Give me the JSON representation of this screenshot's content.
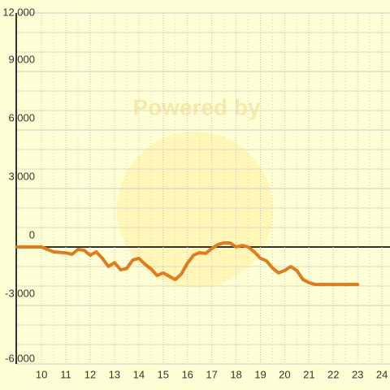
{
  "chart_data": {
    "type": "line",
    "watermark": "Powered by",
    "x": [
      9,
      10,
      10.5,
      11,
      11.25,
      11.5,
      11.75,
      12,
      12.25,
      12.5,
      12.75,
      13,
      13.25,
      13.5,
      13.75,
      14,
      14.25,
      14.5,
      14.75,
      15,
      15.25,
      15.5,
      15.75,
      16,
      16.25,
      16.5,
      16.75,
      17,
      17.25,
      17.5,
      17.75,
      18,
      18.25,
      18.5,
      18.75,
      19,
      19.25,
      19.5,
      19.75,
      20,
      20.25,
      20.5,
      20.75,
      21,
      21.25,
      21.5,
      23
    ],
    "series": [
      {
        "color": "#e07b20",
        "values": [
          0,
          0,
          -250,
          -300,
          -375,
          -125,
          -170,
          -420,
          -250,
          -580,
          -1000,
          -800,
          -1170,
          -1100,
          -670,
          -580,
          -880,
          -1120,
          -1460,
          -1330,
          -1500,
          -1670,
          -1380,
          -830,
          -420,
          -290,
          -330,
          -80,
          125,
          210,
          210,
          0,
          80,
          0,
          -250,
          -580,
          -710,
          -1080,
          -1330,
          -1200,
          -1000,
          -1210,
          -1670,
          -1830,
          -1920,
          -1920,
          -1920
        ]
      }
    ],
    "xlim": [
      8.96,
      24.33
    ],
    "ylim": [
      -6000,
      12000
    ],
    "xticks": [
      10,
      11,
      12,
      13,
      14,
      15,
      16,
      17,
      18,
      19,
      20,
      21,
      22,
      23,
      24
    ],
    "yticks": [
      {
        "value": -6000,
        "label": "-6,000"
      },
      {
        "value": -3000,
        "label": "-3,000"
      },
      0,
      {
        "value": 3000,
        "label": "3,000"
      },
      {
        "value": 6000,
        "label": "6,000"
      },
      {
        "value": 9000,
        "label": "9,000"
      },
      {
        "value": 12000,
        "label": "12,000"
      }
    ],
    "grid": true
  }
}
